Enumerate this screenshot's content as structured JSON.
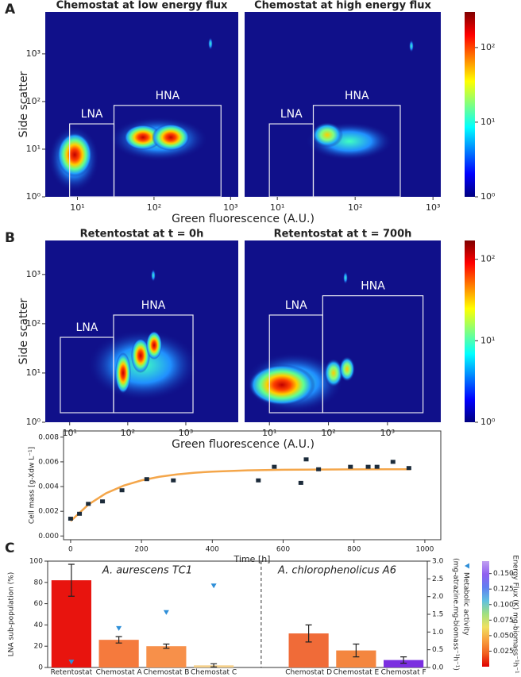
{
  "chart_data": [
    {
      "type": "heatmap",
      "panel_label": "A",
      "titles": [
        "Chemostat at low energy flux",
        "Chemostat at high energy flux"
      ],
      "xlabel": "Green fluorescence (A.U.)",
      "ylabel": "Side scatter",
      "xscale": "log",
      "yscale": "log",
      "xlim": [
        3.8,
        1260
      ],
      "ylim": [
        1,
        7600
      ],
      "xticks": [
        {
          "value": 10,
          "label": "10¹"
        },
        {
          "value": 100,
          "label": "10²"
        },
        {
          "value": 1000,
          "label": "10³"
        }
      ],
      "yticks": [
        {
          "value": 1,
          "label": "10⁰"
        },
        {
          "value": 10,
          "label": "10¹"
        },
        {
          "value": 100,
          "label": "10²"
        },
        {
          "value": 1000,
          "label": "10³"
        }
      ],
      "gates": [
        [
          {
            "label": "LNA",
            "x": [
              7.9,
              30
            ],
            "y": [
              1,
              34
            ]
          },
          {
            "label": "HNA",
            "x": [
              30,
              750
            ],
            "y": [
              1,
              83
            ]
          }
        ],
        [
          {
            "label": "LNA",
            "x": [
              7.9,
              29
            ],
            "y": [
              1,
              34
            ]
          },
          {
            "label": "HNA",
            "x": [
              29,
              380
            ],
            "y": [
              1,
              83
            ]
          }
        ]
      ],
      "colorbar": {
        "scale": "log",
        "lim": [
          1,
          300
        ],
        "ticks": [
          {
            "value": 1,
            "label": "10⁰"
          },
          {
            "value": 10,
            "label": "10¹"
          },
          {
            "value": 100,
            "label": "10²"
          }
        ],
        "colormap": [
          "#00007f",
          "#0000ff",
          "#0080ff",
          "#00ffff",
          "#80ff80",
          "#ffff00",
          "#ff8000",
          "#ff0000",
          "#7f0000"
        ]
      }
    },
    {
      "type": "heatmap",
      "panel_label": "B",
      "titles": [
        "Retentostat at t = 0h",
        "Retentostat at t = 700h"
      ],
      "xlabel": "Green fluorescence (A.U.)",
      "ylabel": "Side scatter",
      "xscale": "log",
      "yscale": "log",
      "xlim": [
        3.8,
        8000
      ],
      "ylim": [
        1,
        4900
      ],
      "xticks": [
        {
          "value": 10,
          "label": "10¹"
        },
        {
          "value": 100,
          "label": "10²"
        },
        {
          "value": 1000,
          "label": "10³"
        }
      ],
      "yticks": [
        {
          "value": 1,
          "label": "10⁰"
        },
        {
          "value": 10,
          "label": "10¹"
        },
        {
          "value": 100,
          "label": "10²"
        },
        {
          "value": 1000,
          "label": "10³"
        }
      ],
      "gates": [
        [
          {
            "label": "LNA",
            "x": [
              6.9,
              57
            ],
            "y": [
              1.56,
              53
            ]
          },
          {
            "label": "HNA",
            "x": [
              57,
              1330
            ],
            "y": [
              1.56,
              150
            ]
          }
        ],
        [
          {
            "label": "LNA",
            "x": [
              10,
              80
            ],
            "y": [
              1.56,
              150
            ]
          },
          {
            "label": "HNA",
            "x": [
              80,
              4000
            ],
            "y": [
              1.56,
              370
            ]
          }
        ]
      ],
      "colorbar": {
        "scale": "log",
        "lim": [
          1,
          170
        ],
        "ticks": [
          {
            "value": 1,
            "label": "10⁰"
          },
          {
            "value": 10,
            "label": "10¹"
          },
          {
            "value": 100,
            "label": "10²"
          }
        ],
        "colormap": [
          "#00007f",
          "#0000ff",
          "#0080ff",
          "#00ffff",
          "#80ff80",
          "#ffff00",
          "#ff8000",
          "#ff0000",
          "#7f0000"
        ]
      }
    },
    {
      "type": "scatter",
      "xlabel": "Time [h]",
      "ylabel": "Cell mass [g-Xdw L⁻¹]",
      "xlim": [
        -20,
        1045
      ],
      "ylim": [
        -0.0003,
        0.0085
      ],
      "xticks": [
        0,
        200,
        400,
        600,
        800,
        1000
      ],
      "yticks": [
        {
          "value": 0,
          "label": "0.000"
        },
        {
          "value": 0.002,
          "label": "0.002"
        },
        {
          "value": 0.004,
          "label": "0.004"
        },
        {
          "value": 0.006,
          "label": "0.006"
        },
        {
          "value": 0.008,
          "label": "0.008"
        }
      ],
      "color": "#1c2b3a",
      "x": [
        0,
        25,
        50,
        90,
        145,
        215,
        290,
        530,
        575,
        650,
        665,
        700,
        790,
        840,
        865,
        910,
        955
      ],
      "values": [
        0.0014,
        0.0018,
        0.0026,
        0.0028,
        0.0037,
        0.0046,
        0.0045,
        0.0045,
        0.0056,
        0.0043,
        0.0062,
        0.0054,
        0.0056,
        0.0056,
        0.0056,
        0.006,
        0.0055
      ],
      "fit": {
        "color": "#f4a64a",
        "x": [
          0,
          50,
          100,
          150,
          200,
          250,
          300,
          350,
          400,
          500,
          600,
          700,
          800,
          900,
          960
        ],
        "values": [
          0.0012,
          0.00254,
          0.00346,
          0.00408,
          0.0045,
          0.00479,
          0.00498,
          0.00512,
          0.00521,
          0.00531,
          0.00536,
          0.00538,
          0.00539,
          0.0054,
          0.0054
        ]
      }
    },
    {
      "type": "bar",
      "panel_label": "C",
      "ylabel": "LNA sub-population (%)",
      "y2label": "(mg-atrazine.mg-biomass⁻¹h⁻¹)",
      "categories": [
        "Retentostat",
        "Chemostat A",
        "Chemostat B",
        "Chemostat C",
        null,
        "Chemostat D",
        "Chemostat E",
        "Chemostat F"
      ],
      "ylim": [
        0,
        100
      ],
      "yticks": [
        0,
        20,
        40,
        60,
        80,
        100
      ],
      "y2lim": [
        0,
        3
      ],
      "y2ticks": [
        {
          "value": 0,
          "label": "0.0"
        },
        0.5,
        {
          "value": 1,
          "label": "1.0"
        },
        1.5,
        {
          "value": 2,
          "label": "2.0"
        },
        2.5,
        {
          "value": 3,
          "label": "3.0"
        }
      ],
      "annotations": [
        "A. aurescens TC1",
        "A. chlorophenolicus A6"
      ],
      "series": [
        {
          "values": [
            82,
            26,
            20,
            2,
            null,
            32,
            16,
            7
          ],
          "errors": [
            15,
            3,
            2,
            1.5,
            null,
            8,
            6,
            3
          ],
          "colors": [
            "#e8140e",
            "#f57a3d",
            "#f7904a",
            "#f5d08a",
            null,
            "#f06b38",
            "#f4863f",
            "#7b2fe0"
          ]
        },
        {
          "name": "Metabolic activity",
          "axis": "y2",
          "color": "#2f8fd8",
          "values": [
            0.15,
            1.1,
            1.55,
            2.3,
            null,
            null,
            null,
            null
          ]
        }
      ],
      "colorbar": {
        "label": "Energy Flux (K) mg-biomass⁻¹h⁻¹",
        "lim": [
          0,
          0.17
        ],
        "ticks": [
          0.025,
          {
            "value": 0.05,
            "label": "0.050"
          },
          0.075,
          {
            "value": 0.1,
            "label": "0.100"
          },
          0.125,
          {
            "value": 0.15,
            "label": "0.150"
          }
        ],
        "colormap": [
          "#e00000",
          "#f06020",
          "#f8a040",
          "#f0e060",
          "#a0e080",
          "#60c0e0",
          "#6080f0",
          "#9060f0",
          "#c0a0f0"
        ]
      }
    }
  ]
}
